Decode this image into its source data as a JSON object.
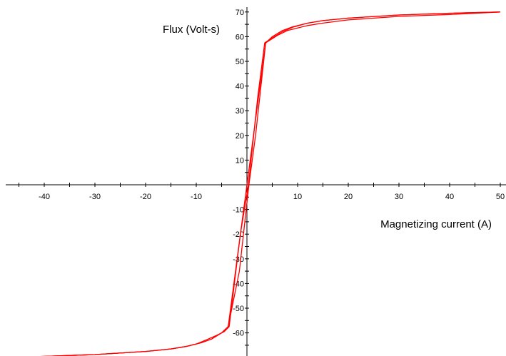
{
  "chart_data": {
    "type": "line",
    "title": "",
    "xlabel": "Magnetizing current (A)",
    "ylabel": "Flux (Volt-s)",
    "xlim": [
      -49,
      50
    ],
    "ylim": [
      -70,
      70
    ],
    "grid": false,
    "legend": "none",
    "x_tick_labels": [
      "-40",
      "-30",
      "-20",
      "-10",
      "10",
      "20",
      "30",
      "40",
      "50"
    ],
    "y_tick_labels": [
      "70",
      "60",
      "50",
      "40",
      "30",
      "20",
      "10",
      "-10",
      "-20",
      "-30",
      "-40",
      "-50",
      "-60"
    ],
    "line_color": "#ff0000",
    "series": [
      {
        "x": [
          -49,
          -40,
          -30,
          -20,
          -15,
          -12,
          -9,
          -7,
          -5,
          -3.7,
          3.7,
          5,
          7,
          9,
          12,
          15,
          20,
          30,
          40,
          50
        ],
        "y": [
          -70,
          -69.5,
          -68.8,
          -67.5,
          -66.5,
          -65.5,
          -64,
          -62.5,
          -60,
          -57.5,
          57.5,
          60,
          62.5,
          64,
          65.5,
          66.5,
          67.5,
          68.8,
          69.5,
          70
        ]
      },
      {
        "x": [
          -49,
          -40,
          -30,
          -20,
          -15,
          -12,
          -9,
          -7,
          -5,
          -3.7,
          -1.5,
          0.4,
          1.7,
          3.7,
          6,
          8,
          10,
          12,
          15,
          20,
          30,
          40,
          50
        ],
        "y": [
          -70,
          -69.5,
          -68.8,
          -67.5,
          -66.5,
          -65.5,
          -64,
          -62.5,
          -60,
          -57.5,
          -35,
          0,
          20,
          57.5,
          60.5,
          62.5,
          63.5,
          64.5,
          65.5,
          66.8,
          68.2,
          69,
          70
        ]
      },
      {
        "x": [
          -49,
          -40,
          -30,
          -20,
          -15,
          -12,
          -10,
          -8,
          -6,
          -4.5,
          -3.5,
          -1.3,
          0.3,
          2.1,
          3.5,
          5,
          7,
          9,
          12,
          15,
          20,
          30,
          40,
          50
        ],
        "y": [
          -70,
          -69.5,
          -68.8,
          -67.5,
          -66.5,
          -65.5,
          -64.5,
          -62.8,
          -61,
          -59.5,
          -57.5,
          -20,
          0,
          35,
          57.5,
          59.5,
          62,
          63.8,
          65.5,
          66.5,
          67.5,
          68.8,
          69.5,
          70
        ]
      }
    ]
  }
}
